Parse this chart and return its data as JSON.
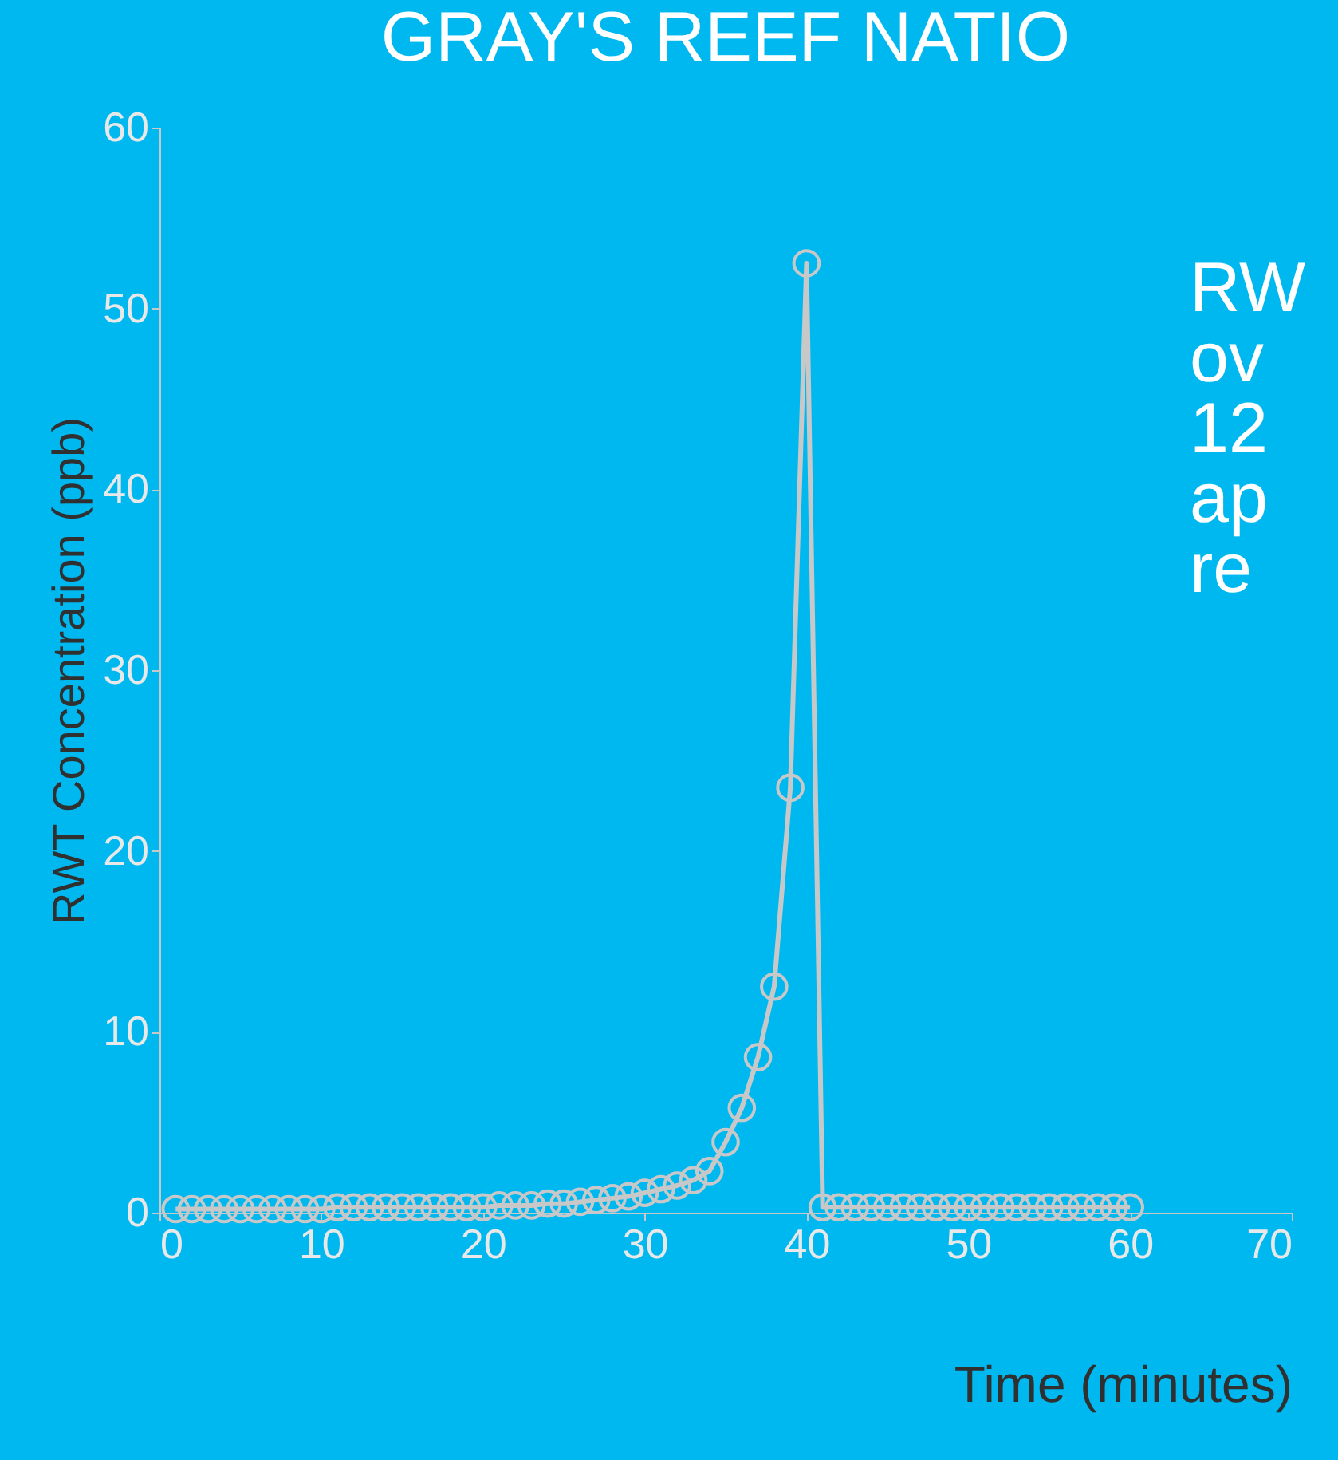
{
  "chart_data": {
    "type": "line",
    "title": "GRAY'S REEF NATIO",
    "xlabel": "Time (minutes)",
    "ylabel": "RWT Concentration (ppb)",
    "annotations": [
      "RW",
      "ov",
      "12",
      "ap",
      "re"
    ],
    "x": [
      1,
      2,
      3,
      4,
      5,
      6,
      7,
      8,
      9,
      10,
      11,
      12,
      13,
      14,
      15,
      16,
      17,
      18,
      19,
      20,
      21,
      22,
      23,
      24,
      25,
      26,
      27,
      28,
      29,
      30,
      31,
      32,
      33,
      34,
      35,
      36,
      37,
      38,
      39,
      40,
      41,
      42,
      43,
      44,
      45,
      46,
      47,
      48,
      49,
      50,
      51,
      52,
      53,
      54,
      55,
      56,
      57,
      58,
      59,
      60
    ],
    "series": [
      {
        "color": "#c8c8c8",
        "values": [
          0.2,
          0.2,
          0.2,
          0.2,
          0.2,
          0.2,
          0.2,
          0.2,
          0.2,
          0.2,
          0.3,
          0.3,
          0.3,
          0.3,
          0.3,
          0.3,
          0.3,
          0.3,
          0.3,
          0.3,
          0.4,
          0.4,
          0.4,
          0.5,
          0.5,
          0.6,
          0.7,
          0.8,
          0.9,
          1.1,
          1.3,
          1.5,
          1.8,
          2.3,
          3.9,
          5.8,
          8.6,
          12.5,
          23.5,
          52.5,
          0.3,
          0.3,
          0.3,
          0.3,
          0.3,
          0.3,
          0.3,
          0.3,
          0.3,
          0.3,
          0.3,
          0.3,
          0.3,
          0.3,
          0.3,
          0.3,
          0.3,
          0.3,
          0.3,
          0.3
        ]
      }
    ],
    "xlim": [
      0,
      70
    ],
    "xticks": [
      0,
      10,
      20,
      30,
      40,
      50,
      60,
      70
    ],
    "ylim": [
      0,
      60
    ],
    "yticks": [
      0,
      10,
      20,
      30,
      40,
      50,
      60
    ],
    "marker": "circle",
    "line_style": "solid"
  }
}
